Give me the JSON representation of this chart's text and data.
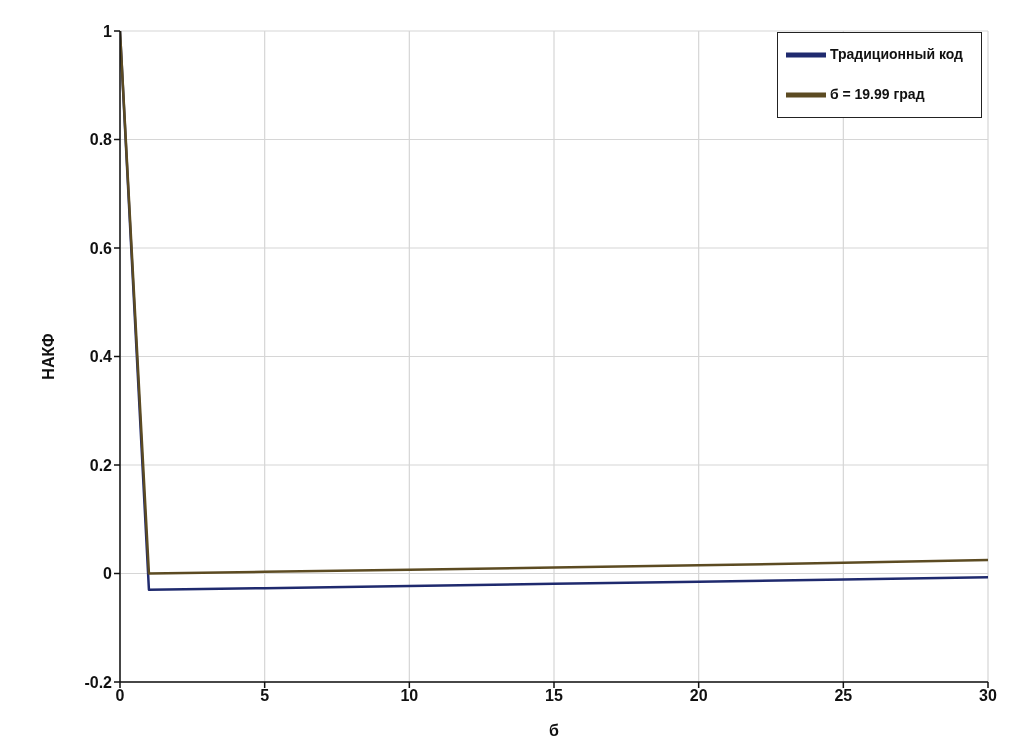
{
  "chart_data": {
    "type": "line",
    "xlabel": "б",
    "ylabel": "НАКФ",
    "x": [
      0,
      1,
      5,
      10,
      15,
      20,
      25,
      30
    ],
    "series": [
      {
        "name": "Традиционный код",
        "color": "#1f2a6e",
        "values": [
          1,
          -0.03,
          -0.027,
          -0.023,
          -0.019,
          -0.015,
          -0.011,
          -0.007
        ]
      },
      {
        "name": "б = 19.99 град",
        "color": "#5c4b22",
        "values": [
          1,
          0,
          0.003,
          0.007,
          0.011,
          0.015,
          0.02,
          0.025
        ]
      }
    ],
    "xlim": [
      0,
      30
    ],
    "xticks": [
      0,
      5,
      10,
      15,
      20,
      25,
      30
    ],
    "ylim": [
      -0.2,
      1
    ],
    "yticks": [
      -0.2,
      0,
      0.2,
      0.4,
      0.6,
      0.8,
      1
    ],
    "grid": true,
    "legend": "top right",
    "marker": "none",
    "line_style": "solid"
  }
}
